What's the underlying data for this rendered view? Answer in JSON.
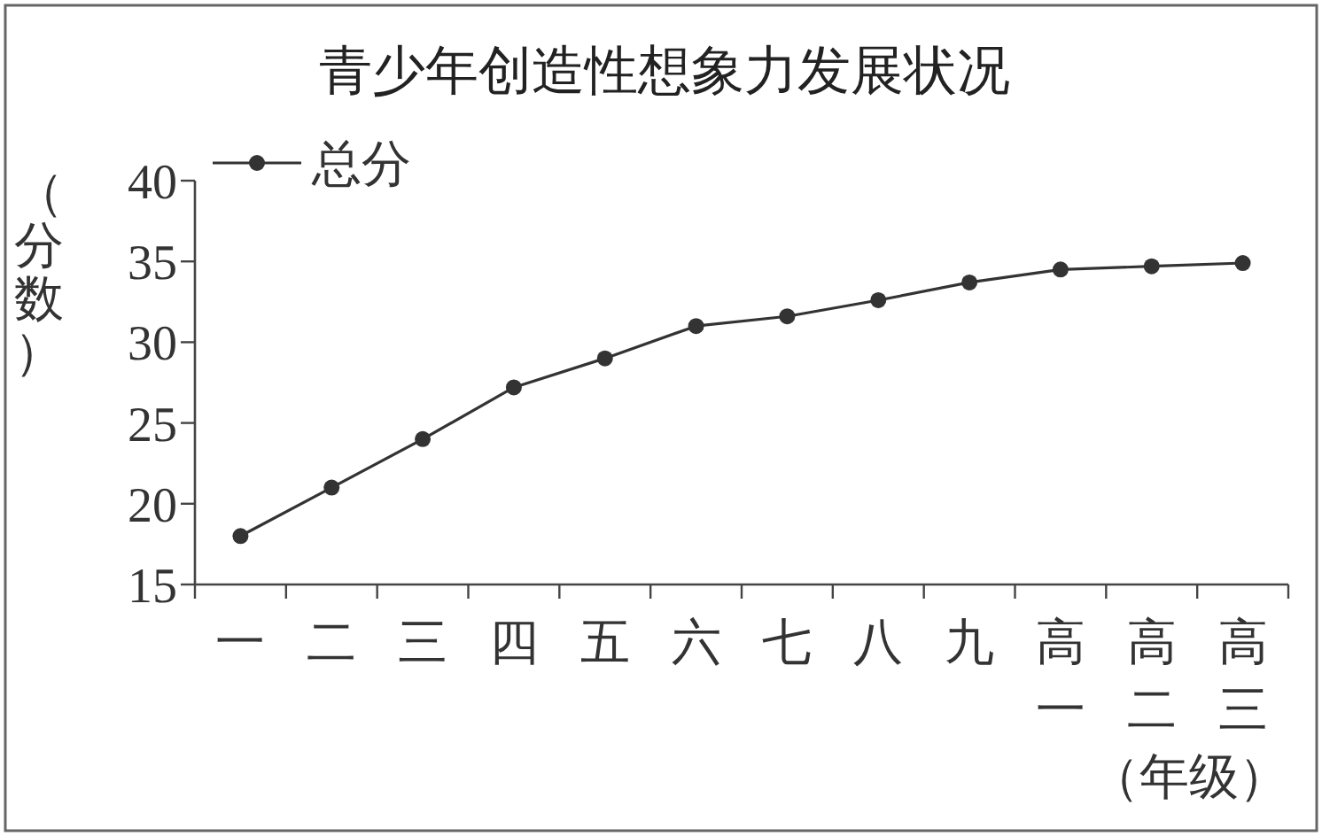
{
  "chart_data": {
    "type": "line",
    "title": "青少年创造性想象力发展状况",
    "xlabel": "（年级）",
    "ylabel": "（分数）",
    "categories": [
      "一",
      "二",
      "三",
      "四",
      "五",
      "六",
      "七",
      "八",
      "九",
      "高一",
      "高二",
      "高三"
    ],
    "series": [
      {
        "name": "总分",
        "color": "#333333",
        "values": [
          18,
          21,
          24,
          27.2,
          29,
          31,
          31.6,
          32.6,
          33.7,
          34.5,
          34.7,
          34.9
        ]
      }
    ],
    "ylim": [
      15,
      40
    ],
    "yticks": [
      15,
      20,
      25,
      30,
      35,
      40
    ],
    "legend": "top left",
    "marker": "circle",
    "line_style": "solid",
    "grid": false
  }
}
